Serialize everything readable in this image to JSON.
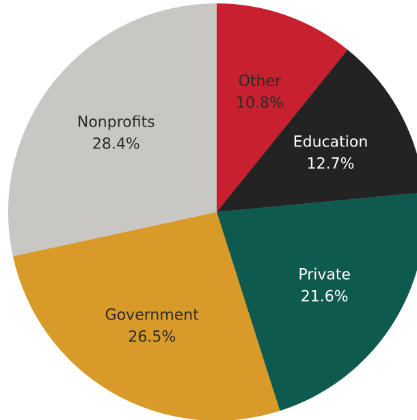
{
  "chart_data": {
    "type": "pie",
    "title": "",
    "start_angle_deg": 0,
    "direction": "clockwise",
    "slices": [
      {
        "label": "Other",
        "value_text": "10.8%",
        "value": 10.8,
        "color": "#c8202f",
        "text_color": "#2b2b2b"
      },
      {
        "label": "Education",
        "value_text": "12.7%",
        "value": 12.7,
        "color": "#232323",
        "text_color": "#ffffff"
      },
      {
        "label": "Private",
        "value_text": "21.6%",
        "value": 21.6,
        "color": "#0f5a4f",
        "text_color": "#ffffff"
      },
      {
        "label": "Government",
        "value_text": "26.5%",
        "value": 26.5,
        "color": "#d89b29",
        "text_color": "#2b2b2b"
      },
      {
        "label": "Nonprofits",
        "value_text": "28.4%",
        "value": 28.4,
        "color": "#c9c7c3",
        "text_color": "#2b2b2b"
      }
    ]
  }
}
